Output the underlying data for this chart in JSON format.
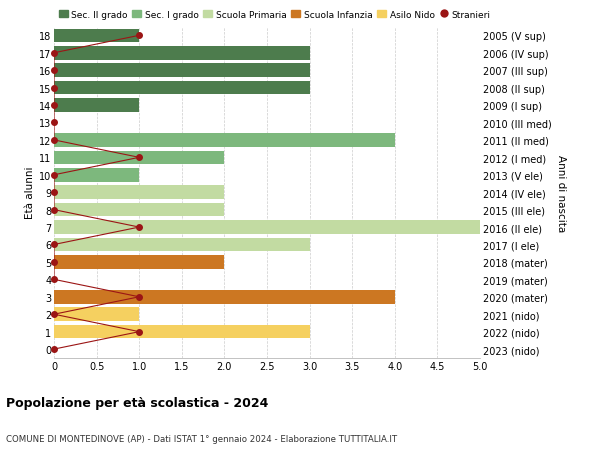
{
  "ages": [
    18,
    17,
    16,
    15,
    14,
    13,
    12,
    11,
    10,
    9,
    8,
    7,
    6,
    5,
    4,
    3,
    2,
    1,
    0
  ],
  "right_labels": [
    "2005 (V sup)",
    "2006 (IV sup)",
    "2007 (III sup)",
    "2008 (II sup)",
    "2009 (I sup)",
    "2010 (III med)",
    "2011 (II med)",
    "2012 (I med)",
    "2013 (V ele)",
    "2014 (IV ele)",
    "2015 (III ele)",
    "2016 (II ele)",
    "2017 (I ele)",
    "2018 (mater)",
    "2019 (mater)",
    "2020 (mater)",
    "2021 (nido)",
    "2022 (nido)",
    "2023 (nido)"
  ],
  "bar_values": [
    1,
    3,
    3,
    3,
    1,
    0,
    4,
    2,
    1,
    2,
    2,
    5,
    3,
    2,
    0,
    4,
    1,
    3,
    0
  ],
  "bar_colors": [
    "#4d7c4d",
    "#4d7c4d",
    "#4d7c4d",
    "#4d7c4d",
    "#4d7c4d",
    "#4d7c4d",
    "#7db87d",
    "#7db87d",
    "#7db87d",
    "#c2dba2",
    "#c2dba2",
    "#c2dba2",
    "#c2dba2",
    "#cc7722",
    "#cc7722",
    "#cc7722",
    "#f5d060",
    "#f5d060",
    "#f5d060"
  ],
  "stranieri_values": [
    1,
    0,
    0,
    0,
    0,
    0,
    0,
    1,
    0,
    0,
    0,
    1,
    0,
    0,
    0,
    1,
    0,
    1,
    0
  ],
  "title": "Popolazione per età scolastica - 2024",
  "subtitle": "COMUNE DI MONTEDINOVE (AP) - Dati ISTAT 1° gennaio 2024 - Elaborazione TUTTITALIA.IT",
  "ylabel_left": "Età alunni",
  "ylabel_right": "Anni di nascita",
  "xlim": [
    0,
    5.0
  ],
  "ylim": [
    -0.5,
    18.5
  ],
  "color_sec2": "#4d7c4d",
  "color_sec1": "#7db87d",
  "color_prim": "#c2dba2",
  "color_infanzia": "#cc7722",
  "color_nido": "#f5d060",
  "color_stranieri": "#9b1515",
  "legend_labels": [
    "Sec. II grado",
    "Sec. I grado",
    "Scuola Primaria",
    "Scuola Infanzia",
    "Asilo Nido",
    "Stranieri"
  ],
  "bg_color": "#ffffff",
  "grid_color": "#cccccc",
  "bar_height": 0.78
}
